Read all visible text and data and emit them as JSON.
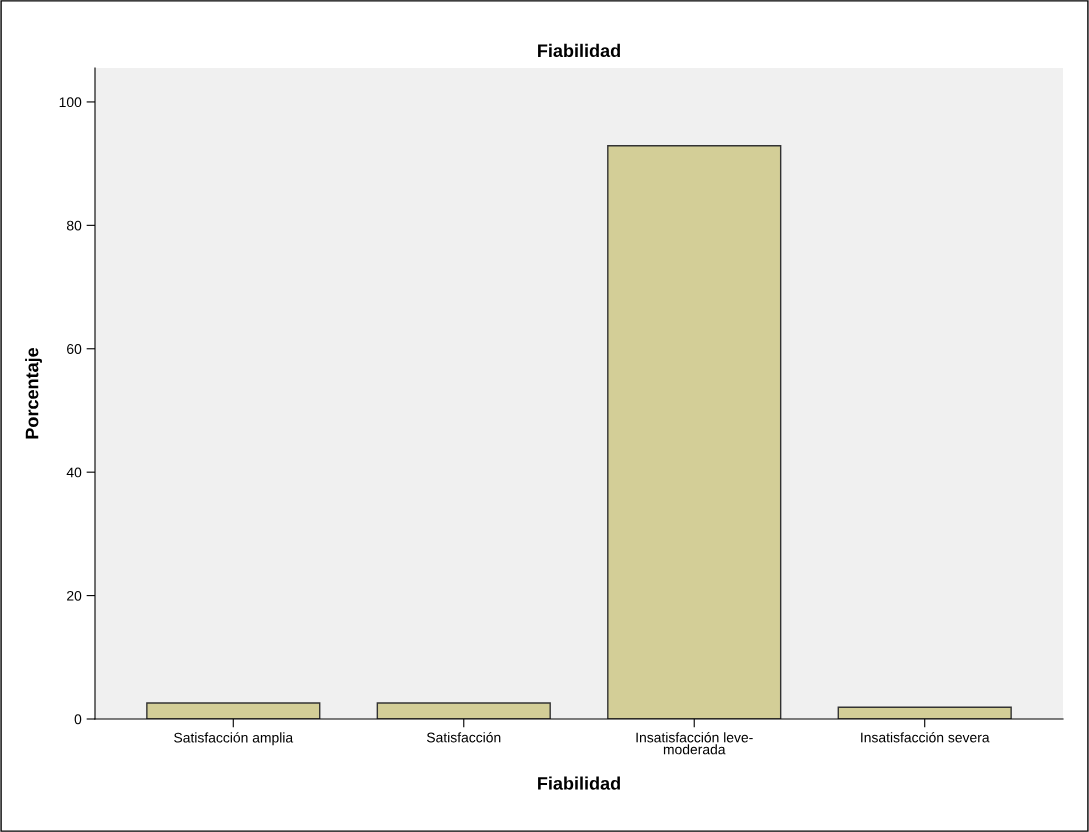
{
  "chart_data": {
    "type": "bar",
    "title": "Fiabilidad",
    "xlabel": "Fiabilidad",
    "ylabel": "Porcentaje",
    "categories": [
      "Satisfacción amplia",
      "Satisfacción",
      "Insatisfacción leve-\nmoderada",
      "Insatisfacción severa"
    ],
    "values": [
      2.6,
      2.6,
      92.9,
      1.9
    ],
    "color": "#d3ce97",
    "ylim": [
      0,
      105.5
    ],
    "yticks": [
      0,
      20,
      40,
      60,
      80,
      100
    ],
    "grid": false
  }
}
